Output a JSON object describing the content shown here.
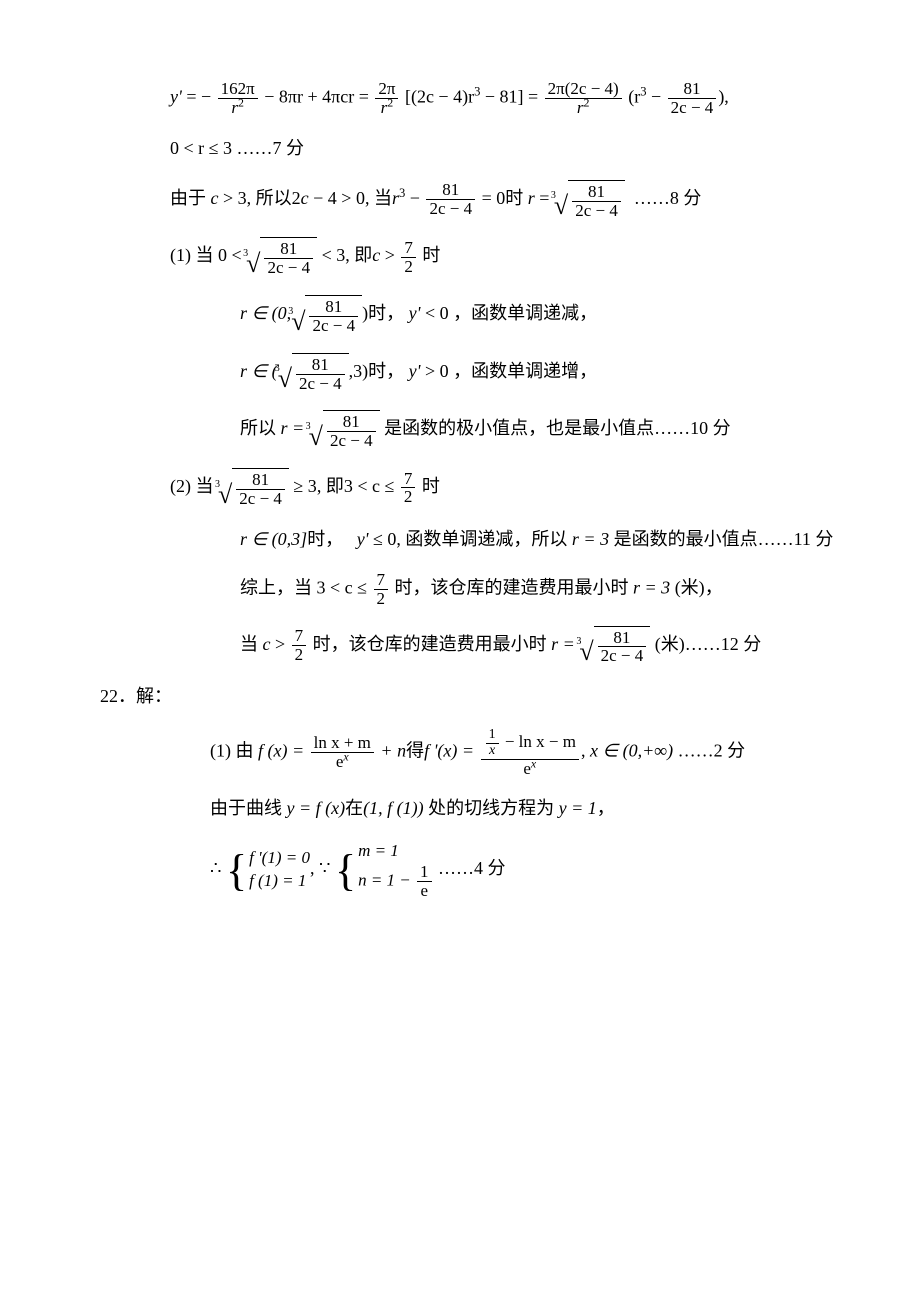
{
  "colors": {
    "text": "#000000",
    "background": "#ffffff"
  },
  "font": {
    "family": "Times New Roman / SimSun",
    "size_pt": 14
  },
  "labels": {
    "pts7": "……7 分",
    "pts8": "……8 分",
    "pts10": "……10 分",
    "pts11": "……11 分",
    "pts12": "……12 分",
    "pts2": "……2 分",
    "pts4": "……4 分",
    "q22": "22．解：",
    "fn_dec": "函数单调递减，",
    "fn_inc": "函数单调递增，",
    "case1_prefix": "(1) 当",
    "case2_prefix": "(2) 当",
    "when": "时",
    "when_comma": "时，",
    "by": "由于",
    "so": "所以",
    "therefore": "∴",
    "because": "∵",
    "combine": "综上，当",
    "store_min": "该仓库的建造费用最小时",
    "meter": "(米)",
    "min_point": "是函数的极小值点，也是最小值点",
    "fn_min_point": "是函数的最小值点",
    "tangent": "处的切线方程为",
    "curve": "由于曲线",
    "ie": "即",
    "at": "在",
    "get": "得",
    "item1": "(1) 由",
    "range_r": "0 < r ≤ 3"
  },
  "math": {
    "yprime": "y'",
    "r": "r",
    "c": "c",
    "x": "x",
    "m": "m",
    "n": "n",
    "e": "e",
    "eq0": "= 0",
    "lt0": "< 0",
    "gt0": "> 0",
    "le0": "≤ 0",
    "cgt3": "c > 3",
    "twoc4gt0": "2c − 4 > 0",
    "cube81": "81",
    "den2c4": "2c − 4",
    "lt3": "< 3",
    "ge3": "≥ 3",
    "cgt72": "c > ",
    "c_between": "3 < c ≤ ",
    "seven_two_num": "7",
    "seven_two_den": "2",
    "r_in_03": "r ∈ (0,3]",
    "r_eq_3": "r = 3",
    "pi": "π",
    "line1_a_num": "162π",
    "line1_a_den": "r",
    "line1_b": "− 8πr + 4πcr =",
    "line1_c_num": "2π",
    "line1_c_den": "r",
    "line1_d": "[(2c − 4)r",
    "line1_e": "− 81] =",
    "line1_f_num": "2π(2c − 4)",
    "line1_f_den": "r",
    "line1_g": "(r",
    "line1_h": "−",
    "line1_i_num": "81",
    "line1_i_den": "2c − 4",
    "line1_j": "),",
    "r3minus": "r",
    "fprime1_0": "f '(1) = 0",
    "f1_1": "f (1) = 1",
    "m_1": "m = 1",
    "n_eq": "n = 1 − ",
    "one": "1",
    "e_den": "e",
    "fx": "f (x) =",
    "lnxm_num": "ln x + m",
    "ex_den": "e",
    "plus_n": "+ n",
    "fpx": "f '(x) =",
    "fpx_num_top": "1",
    "fpx_num_bot": "x",
    "fpx_num_rest": "− ln x − m",
    "x_in": "x ∈ (0,+∞)",
    "yfx": "y = f (x)",
    "at_pt": "(1, f (1))",
    "y1": "y = 1",
    "r_in_open": "r ∈ (0,",
    "r_in_open2": "r ∈ (",
    "close_paren": ")",
    "comma3_close": ",3)",
    "r_eq": "r ="
  }
}
